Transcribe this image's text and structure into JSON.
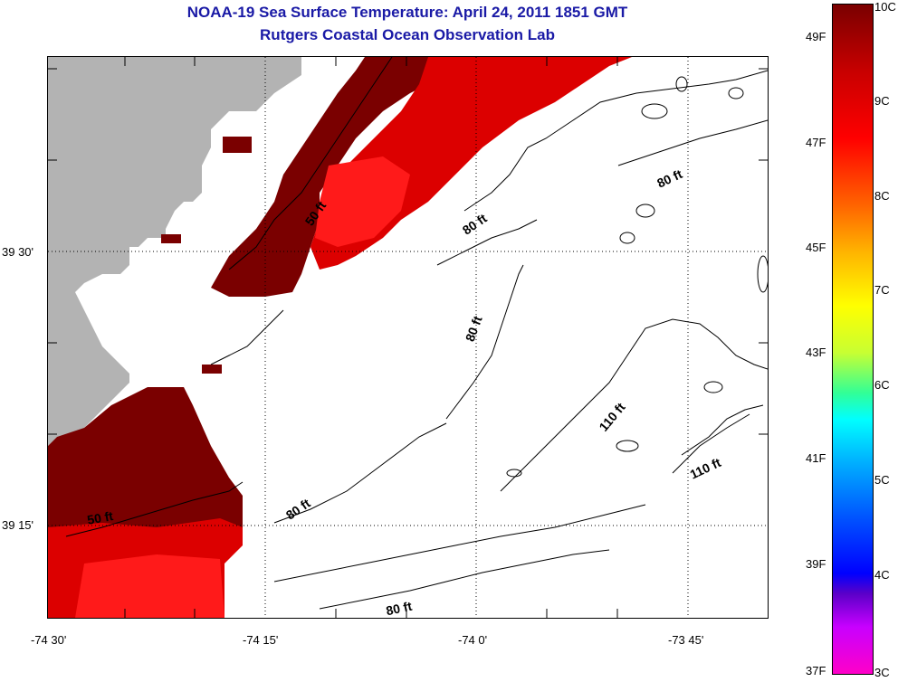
{
  "header": {
    "title": "NOAA-19 Sea Surface Temperature:  April 24, 2011 1851 GMT",
    "subtitle": "Rutgers Coastal Ocean Observation Lab"
  },
  "axes": {
    "x_ticks": [
      "-74 30'",
      "-74 15'",
      "-74 0'",
      "-73 45'"
    ],
    "y_ticks": [
      "39 30'",
      "39 15'"
    ]
  },
  "contours": {
    "labels": [
      "50 ft",
      "80 ft",
      "80 ft",
      "80 ft",
      "110 ft",
      "110 ft",
      "80 ft",
      "80 ft",
      "50 ft"
    ]
  },
  "colorbar": {
    "celsius": [
      "10C",
      "9C",
      "8C",
      "7C",
      "6C",
      "5C",
      "4C",
      "3C"
    ],
    "fahrenheit": [
      "49F",
      "47F",
      "45F",
      "43F",
      "41F",
      "39F",
      "37F"
    ]
  },
  "colors": {
    "land": "#b3b3b3",
    "sst_warm": "#7a0000",
    "sst_mid": "#dc0000",
    "sst_hot": "#ff1a1a",
    "title": "#1a1aa6"
  }
}
